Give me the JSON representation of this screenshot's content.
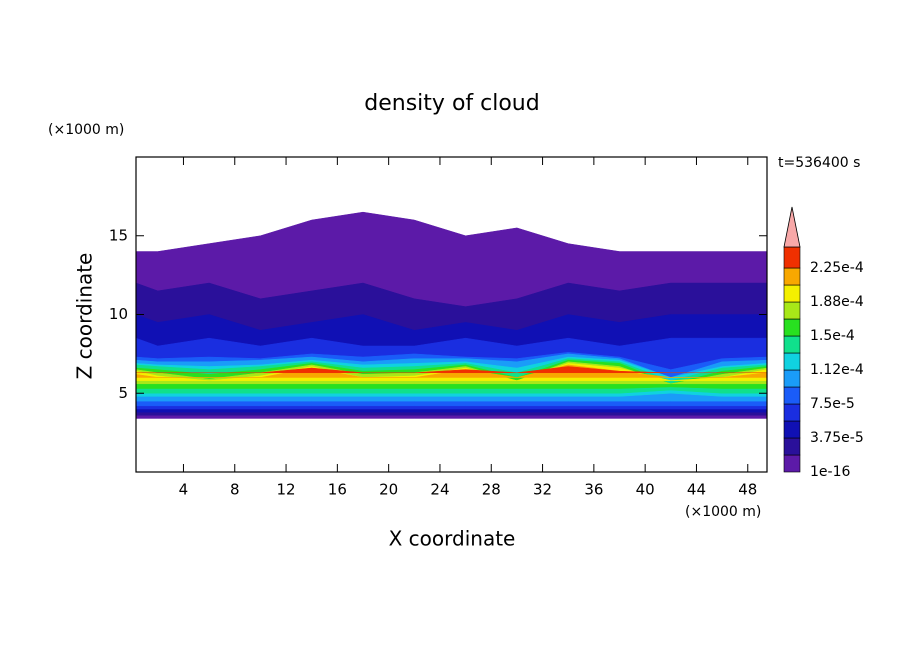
{
  "chart_data": {
    "type": "contour",
    "title": "density of cloud",
    "time_label": "t=536400 s",
    "x_label": "X coordinate",
    "y_label": "Z coordinate",
    "x_unit": "(×1000 m)",
    "y_unit": "(×1000 m)",
    "xlim": [
      0.3,
      49.5
    ],
    "ylim": [
      0,
      20
    ],
    "xticks": [
      4,
      8,
      12,
      16,
      20,
      24,
      28,
      32,
      36,
      40,
      44,
      48
    ],
    "yticks": [
      5,
      10,
      15
    ],
    "colorbar": {
      "ticks": [
        1e-16,
        {
          "value": 3.75e-05,
          "label": "3.75e-5"
        },
        {
          "value": 7.5e-05,
          "label": "7.5e-5"
        },
        {
          "value": 0.000112,
          "label": "1.12e-4"
        },
        {
          "value": 0.00015,
          "label": "1.5e-4"
        },
        {
          "value": 0.000188,
          "label": "1.88e-4"
        },
        {
          "value": 0.000225,
          "label": "2.25e-4"
        }
      ],
      "colors": [
        "#5c1aa8",
        "#2a109a",
        "#1010b4",
        "#1a2ee0",
        "#1a5cf8",
        "#1a9cf8",
        "#10d2e0",
        "#10e08c",
        "#28e020",
        "#a8e818",
        "#f4f000",
        "#f8a800",
        "#f03000"
      ],
      "extend_color": "#f8a8a8"
    },
    "field": {
      "x": [
        0.3,
        2,
        6,
        10,
        14,
        18,
        22,
        26,
        30,
        34,
        38,
        42,
        46,
        49.5
      ],
      "layers": [
        {
          "bottom": [
            3.4,
            3.4,
            3.4,
            3.4,
            3.4,
            3.4,
            3.4,
            3.4,
            3.4,
            3.4,
            3.4,
            3.4,
            3.4,
            3.4
          ],
          "top": [
            14,
            14,
            14.5,
            15,
            16,
            16.5,
            16,
            15,
            15.5,
            14.5,
            14,
            14,
            14,
            14
          ]
        },
        {
          "bottom": [
            3.6,
            3.6,
            3.6,
            3.6,
            3.6,
            3.6,
            3.6,
            3.6,
            3.6,
            3.6,
            3.6,
            3.6,
            3.6,
            3.6
          ],
          "top": [
            12,
            11.5,
            12,
            11,
            11.5,
            12,
            11,
            10.5,
            11,
            12,
            11.5,
            12,
            12,
            12
          ]
        },
        {
          "bottom": [
            3.8,
            3.8,
            3.8,
            3.8,
            3.8,
            3.8,
            3.8,
            3.8,
            3.8,
            3.8,
            3.8,
            3.8,
            3.8,
            3.8
          ],
          "top": [
            10,
            9.5,
            10,
            9,
            9.5,
            10,
            9,
            9.5,
            9,
            10,
            9.5,
            10,
            10,
            10
          ]
        },
        {
          "bottom": [
            4,
            4,
            4,
            4,
            4,
            4,
            4,
            4,
            4,
            4,
            4,
            4,
            4,
            4
          ],
          "top": [
            8.5,
            8,
            8.5,
            8,
            8.5,
            8,
            8,
            8.5,
            8,
            8.5,
            8,
            8.5,
            8.5,
            8.5
          ]
        },
        {
          "bottom": [
            4.2,
            4.2,
            4.2,
            4.2,
            4.2,
            4.2,
            4.2,
            4.2,
            4.2,
            4.2,
            4.2,
            4.2,
            4.2,
            4.2
          ],
          "top": [
            7.3,
            7.2,
            7.3,
            7.2,
            7.5,
            7.3,
            7.5,
            7.3,
            7.2,
            7.6,
            7.3,
            6.5,
            7.2,
            7.3
          ]
        },
        {
          "bottom": [
            4.5,
            4.5,
            4.5,
            4.5,
            4.5,
            4.5,
            4.5,
            4.5,
            4.5,
            4.5,
            4.5,
            4.5,
            4.5,
            4.5
          ],
          "top": [
            7.1,
            7,
            7,
            7.1,
            7.3,
            7,
            7.2,
            7.2,
            7,
            7.5,
            7.2,
            6,
            7,
            7.1
          ]
        },
        {
          "bottom": [
            4.8,
            4.8,
            4.8,
            4.8,
            4.8,
            4.8,
            4.8,
            4.8,
            4.8,
            4.8,
            4.8,
            5,
            4.8,
            4.8
          ],
          "top": [
            6.9,
            6.8,
            6.7,
            6.8,
            7.1,
            6.8,
            6.9,
            7,
            6.6,
            7.3,
            7.1,
            6,
            6.7,
            6.9
          ]
        },
        {
          "bottom": [
            5,
            5,
            5,
            5,
            5,
            5,
            5,
            5,
            5,
            5,
            5,
            5.2,
            5,
            5
          ],
          "top": [
            6.8,
            6.7,
            6.5,
            6.7,
            7,
            6.6,
            6.7,
            6.9,
            6.3,
            7.2,
            7,
            5.8,
            6.6,
            6.8
          ]
        },
        {
          "bottom": [
            5.3,
            5.3,
            5.3,
            5.3,
            5.3,
            5.3,
            5.3,
            5.3,
            5.3,
            5.3,
            5.3,
            5.4,
            5.3,
            5.3
          ],
          "top": [
            6.6,
            6.5,
            6.2,
            6.5,
            6.9,
            6.4,
            6.5,
            6.8,
            6,
            7.1,
            6.9,
            5.6,
            6.4,
            6.7
          ]
        },
        {
          "bottom": [
            5.6,
            5.6,
            5.6,
            5.6,
            5.6,
            5.6,
            5.6,
            5.6,
            5.6,
            5.6,
            5.6,
            5.6,
            5.6,
            5.6
          ],
          "top": [
            6.5,
            6.3,
            5.9,
            6.3,
            6.8,
            6.2,
            6.3,
            6.7,
            5.8,
            7,
            6.7,
            5.6,
            6.2,
            6.6
          ]
        },
        {
          "bottom": [
            5.8,
            5.8,
            5.8,
            5.8,
            5.8,
            5.8,
            5.8,
            5.8,
            5.8,
            5.8,
            5.8,
            5.8,
            5.8,
            5.8
          ],
          "top": [
            6.4,
            6.1,
            5.8,
            6.1,
            6.7,
            6,
            6.1,
            6.6,
            5.8,
            6.9,
            6.6,
            5.8,
            6,
            6.5
          ]
        },
        {
          "bottom": [
            6,
            6,
            6,
            6,
            6,
            6,
            6,
            6,
            6,
            6,
            6,
            6,
            6,
            6
          ],
          "top": [
            6.2,
            6,
            6,
            6,
            6.6,
            6,
            6,
            6.5,
            6,
            6.8,
            6.4,
            6,
            6,
            6.3
          ]
        },
        {
          "bottom": [
            6.3,
            6.3,
            6.3,
            6.3,
            6.3,
            6.3,
            6.3,
            6.3,
            6.3,
            6.3,
            6.3,
            6.3,
            6.3,
            6.3
          ],
          "top": [
            6.3,
            6.3,
            6.3,
            6.3,
            6.6,
            6.3,
            6.3,
            6.5,
            6.3,
            6.7,
            6.4,
            6.3,
            6.3,
            6.3
          ]
        }
      ]
    }
  }
}
